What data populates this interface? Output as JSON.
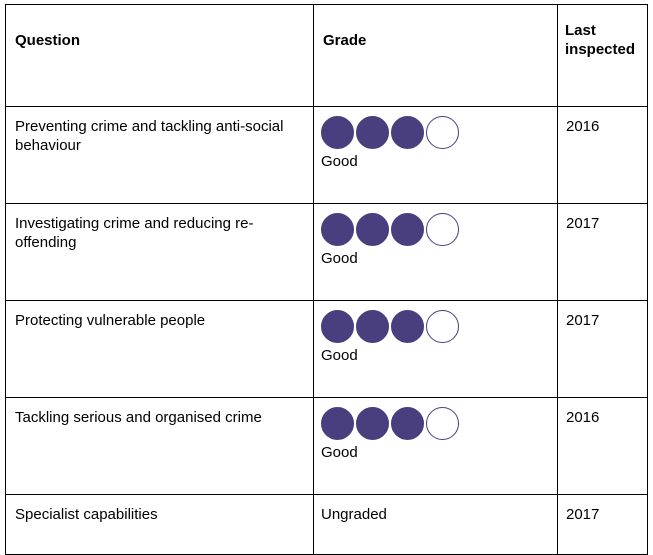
{
  "table": {
    "headers": {
      "question": "Question",
      "grade": "Grade",
      "last_inspected": "Last inspected"
    },
    "rows": [
      {
        "question": "Preventing crime and tackling anti-social behaviour",
        "grade": "Good",
        "rating": 3,
        "rating_max": 4,
        "last_inspected": "2016"
      },
      {
        "question": "Investigating crime and reducing re-offending",
        "grade": "Good",
        "rating": 3,
        "rating_max": 4,
        "last_inspected": "2017"
      },
      {
        "question": "Protecting vulnerable people",
        "grade": "Good",
        "rating": 3,
        "rating_max": 4,
        "last_inspected": "2017"
      },
      {
        "question": "Tackling serious and organised crime",
        "grade": "Good",
        "rating": 3,
        "rating_max": 4,
        "last_inspected": "2016"
      },
      {
        "question": "Specialist capabilities",
        "grade": "Ungraded",
        "rating": null,
        "rating_max": 4,
        "last_inspected": "2017"
      }
    ]
  },
  "colors": {
    "rating_fill": "#493e7e",
    "border": "#000000"
  }
}
